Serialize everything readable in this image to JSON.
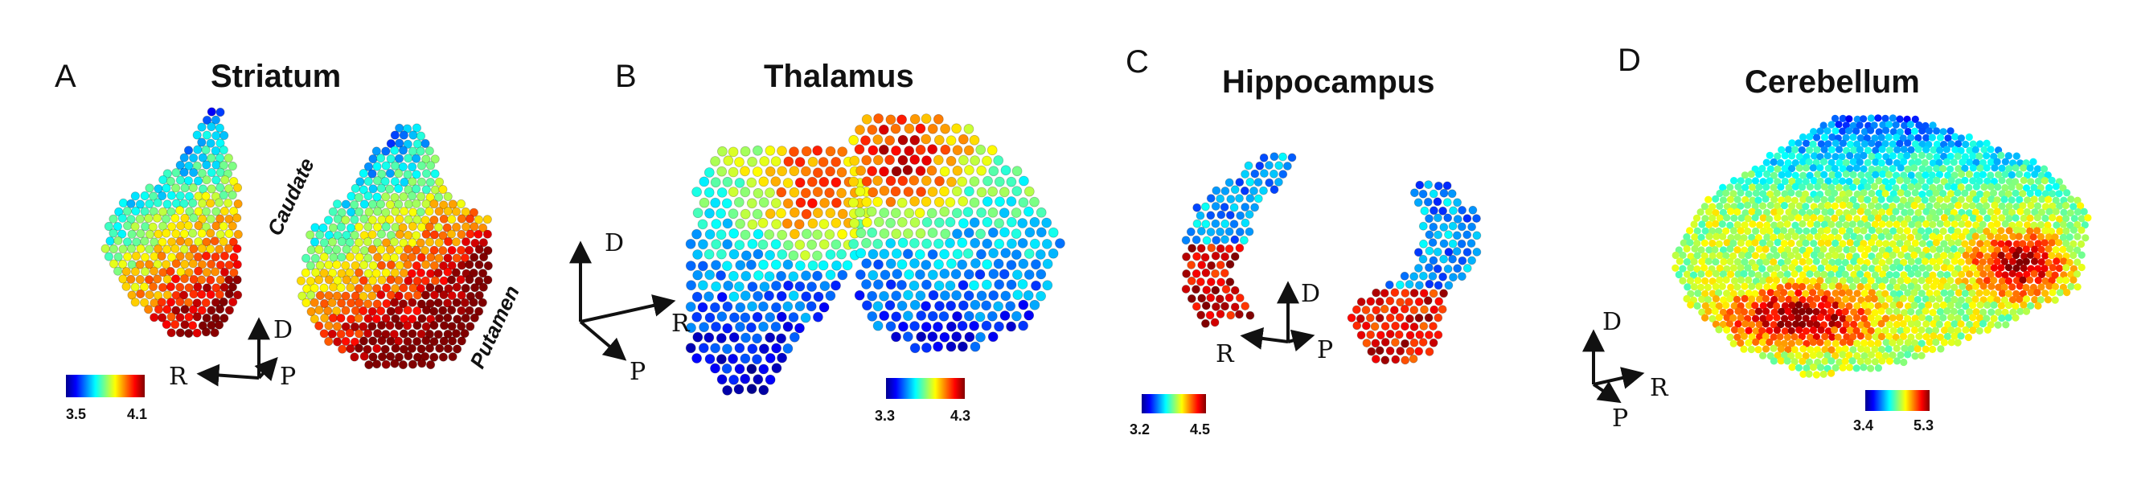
{
  "colormap": [
    "#00008f",
    "#0000ff",
    "#0080ff",
    "#00ffff",
    "#80ff80",
    "#ffff00",
    "#ff8000",
    "#ff0000",
    "#800000"
  ],
  "panels": [
    {
      "id": "A",
      "letter": "A",
      "title": "Striatum",
      "structures": [
        "Caudate",
        "Putamen"
      ],
      "axes": [
        "D",
        "R",
        "P"
      ],
      "colorbar": {
        "min": "3.5",
        "max": "4.1"
      }
    },
    {
      "id": "B",
      "letter": "B",
      "title": "Thalamus",
      "axes": [
        "D",
        "R",
        "P"
      ],
      "colorbar": {
        "min": "3.3",
        "max": "4.3"
      }
    },
    {
      "id": "C",
      "letter": "C",
      "title": "Hippocampus",
      "axes": [
        "D",
        "R",
        "P"
      ],
      "colorbar": {
        "min": "3.2",
        "max": "4.5"
      }
    },
    {
      "id": "D",
      "letter": "D",
      "title": "Cerebellum",
      "axes": [
        "D",
        "R",
        "P"
      ],
      "colorbar": {
        "min": "3.4",
        "max": "5.3"
      }
    }
  ]
}
